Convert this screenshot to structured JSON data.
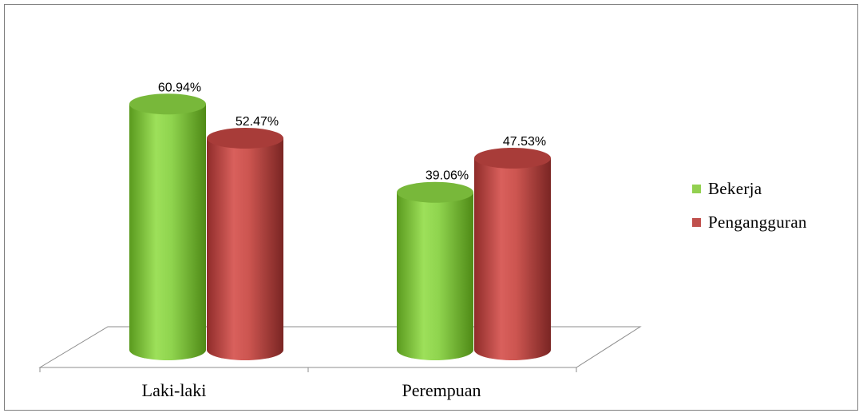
{
  "chart_data": {
    "type": "bar",
    "style": "3d-cylinder",
    "categories": [
      "Laki-laki",
      "Perempuan"
    ],
    "series": [
      {
        "name": "Bekerja",
        "values": [
          60.94,
          39.06
        ],
        "labels": [
          "60.94%",
          "39.06%"
        ],
        "color": "#92d050"
      },
      {
        "name": "Pengangguran",
        "values": [
          52.47,
          47.53
        ],
        "labels": [
          "52.47%",
          "47.53%"
        ],
        "color": "#c0504d"
      }
    ],
    "ylim": [
      0,
      70
    ],
    "grid": false,
    "legend": "right"
  }
}
